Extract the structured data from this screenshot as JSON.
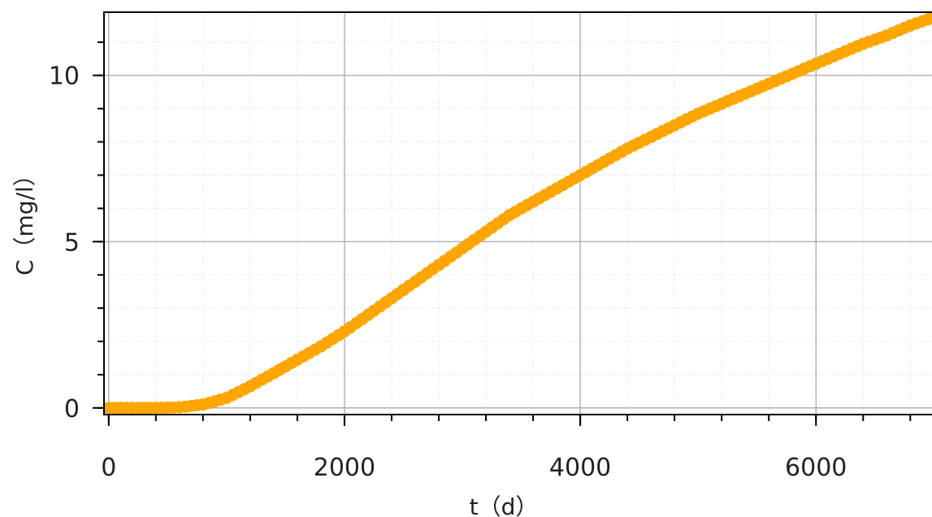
{
  "chart_data": {
    "type": "scatter",
    "xlabel": "t（d）",
    "ylabel": "C（mg/l）",
    "xlim": [
      -40,
      7060
    ],
    "ylim": [
      -0.2,
      11.9
    ],
    "x_ticks": [
      0,
      2000,
      4000,
      6000
    ],
    "x_tick_labels": [
      "0",
      "2000",
      "4000",
      "6000"
    ],
    "y_ticks": [
      0,
      5,
      10
    ],
    "y_tick_labels": [
      "0",
      "5",
      "10"
    ],
    "x_minor_step": 400,
    "y_minor_step": 1,
    "grid": true,
    "legend": "none",
    "series": [
      {
        "color": "#FFA500",
        "x": [
          0,
          200,
          400,
          600,
          800,
          1000,
          1200,
          1400,
          1600,
          1800,
          2000,
          2200,
          2400,
          2600,
          2800,
          3000,
          3200,
          3400,
          3600,
          3800,
          4000,
          4200,
          4400,
          4600,
          4800,
          5000,
          5200,
          5400,
          5600,
          5800,
          6000,
          6200,
          6400,
          6600,
          6800,
          7000
        ],
        "y": [
          0.0,
          0.0,
          0.0,
          0.02,
          0.1,
          0.3,
          0.65,
          1.05,
          1.45,
          1.85,
          2.3,
          2.8,
          3.3,
          3.8,
          4.3,
          4.8,
          5.3,
          5.8,
          6.2,
          6.6,
          7.0,
          7.4,
          7.8,
          8.15,
          8.5,
          8.85,
          9.15,
          9.45,
          9.75,
          10.05,
          10.35,
          10.65,
          10.95,
          11.2,
          11.5,
          11.75
        ]
      }
    ]
  }
}
